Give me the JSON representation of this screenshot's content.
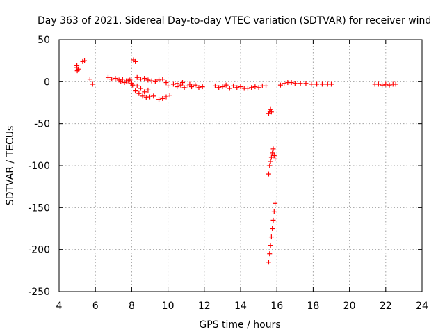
{
  "chart_data": {
    "type": "scatter",
    "title": "Day 363 of 2021, Sidereal Day-to-day VTEC variation (SDTVAR) for receiver wind",
    "xlabel": "GPS time / hours",
    "ylabel": "SDTVAR / TECUs",
    "xlim": [
      4,
      24
    ],
    "ylim": [
      -250,
      50
    ],
    "xticks": [
      "4",
      "6",
      "8",
      "10",
      "12",
      "14",
      "16",
      "18",
      "20",
      "22",
      "24"
    ],
    "yticks": [
      "50",
      "0",
      "-50",
      "-100",
      "-150",
      "-200",
      "-250"
    ],
    "grid": true,
    "marker": "plus",
    "color": "#ff0000",
    "series": [
      {
        "name": "SDTVAR",
        "x": [
          4.95,
          5.0,
          4.98,
          5.05,
          5.3,
          5.4,
          5.7,
          5.85,
          6.7,
          6.9,
          7.1,
          7.3,
          7.5,
          7.7,
          7.9,
          7.4,
          7.6,
          7.8,
          8.0,
          8.05,
          8.1,
          8.2,
          8.3,
          8.5,
          8.7,
          8.9,
          9.1,
          9.3,
          9.5,
          9.7,
          9.9,
          8.3,
          8.5,
          8.7,
          8.2,
          8.4,
          8.6,
          8.8,
          9.0,
          9.2,
          8.9,
          9.5,
          9.7,
          9.9,
          10.1,
          10.0,
          10.3,
          10.5,
          10.7,
          10.9,
          11.1,
          11.3,
          11.5,
          11.7,
          11.9,
          10.5,
          10.8,
          11.2,
          11.6,
          12.6,
          12.8,
          13.0,
          13.2,
          13.4,
          13.6,
          13.8,
          14.0,
          14.2,
          14.4,
          14.6,
          14.8,
          15.0,
          15.2,
          15.4,
          15.55,
          15.6,
          15.65,
          15.7,
          15.55,
          15.6,
          15.65,
          15.7,
          15.75,
          15.8,
          15.85,
          15.9,
          15.55,
          15.6,
          15.65,
          15.7,
          15.75,
          15.8,
          15.85,
          15.9,
          16.2,
          16.4,
          16.6,
          16.8,
          17.0,
          17.3,
          17.6,
          17.9,
          18.2,
          18.5,
          18.8,
          19.0,
          21.4,
          21.6,
          21.8,
          22.0,
          22.2,
          22.4,
          22.55
        ],
        "y": [
          17,
          13,
          19,
          15,
          24,
          25,
          3,
          -3,
          5,
          3,
          4,
          2,
          3,
          1,
          2,
          0,
          -1,
          1,
          -2,
          -4,
          26,
          24,
          5,
          3,
          4,
          2,
          1,
          0,
          2,
          3,
          -1,
          -5,
          -8,
          -12,
          -11,
          -14,
          -17,
          -19,
          -18,
          -17,
          -10,
          -21,
          -20,
          -18,
          -16,
          -5,
          -3,
          -6,
          -4,
          -7,
          -5,
          -6,
          -4,
          -7,
          -6,
          -2,
          -1,
          -3,
          -5,
          -5,
          -7,
          -6,
          -4,
          -8,
          -5,
          -7,
          -6,
          -8,
          -8,
          -7,
          -6,
          -7,
          -5,
          -5,
          -38,
          -35,
          -33,
          -36,
          -110,
          -100,
          -95,
          -90,
          -85,
          -80,
          -88,
          -92,
          -215,
          -205,
          -195,
          -185,
          -175,
          -165,
          -155,
          -145,
          -4,
          -2,
          -1,
          -1,
          -2,
          -2,
          -2,
          -3,
          -3,
          -3,
          -3,
          -3,
          -3,
          -3,
          -4,
          -3,
          -4,
          -3,
          -3
        ]
      }
    ]
  }
}
